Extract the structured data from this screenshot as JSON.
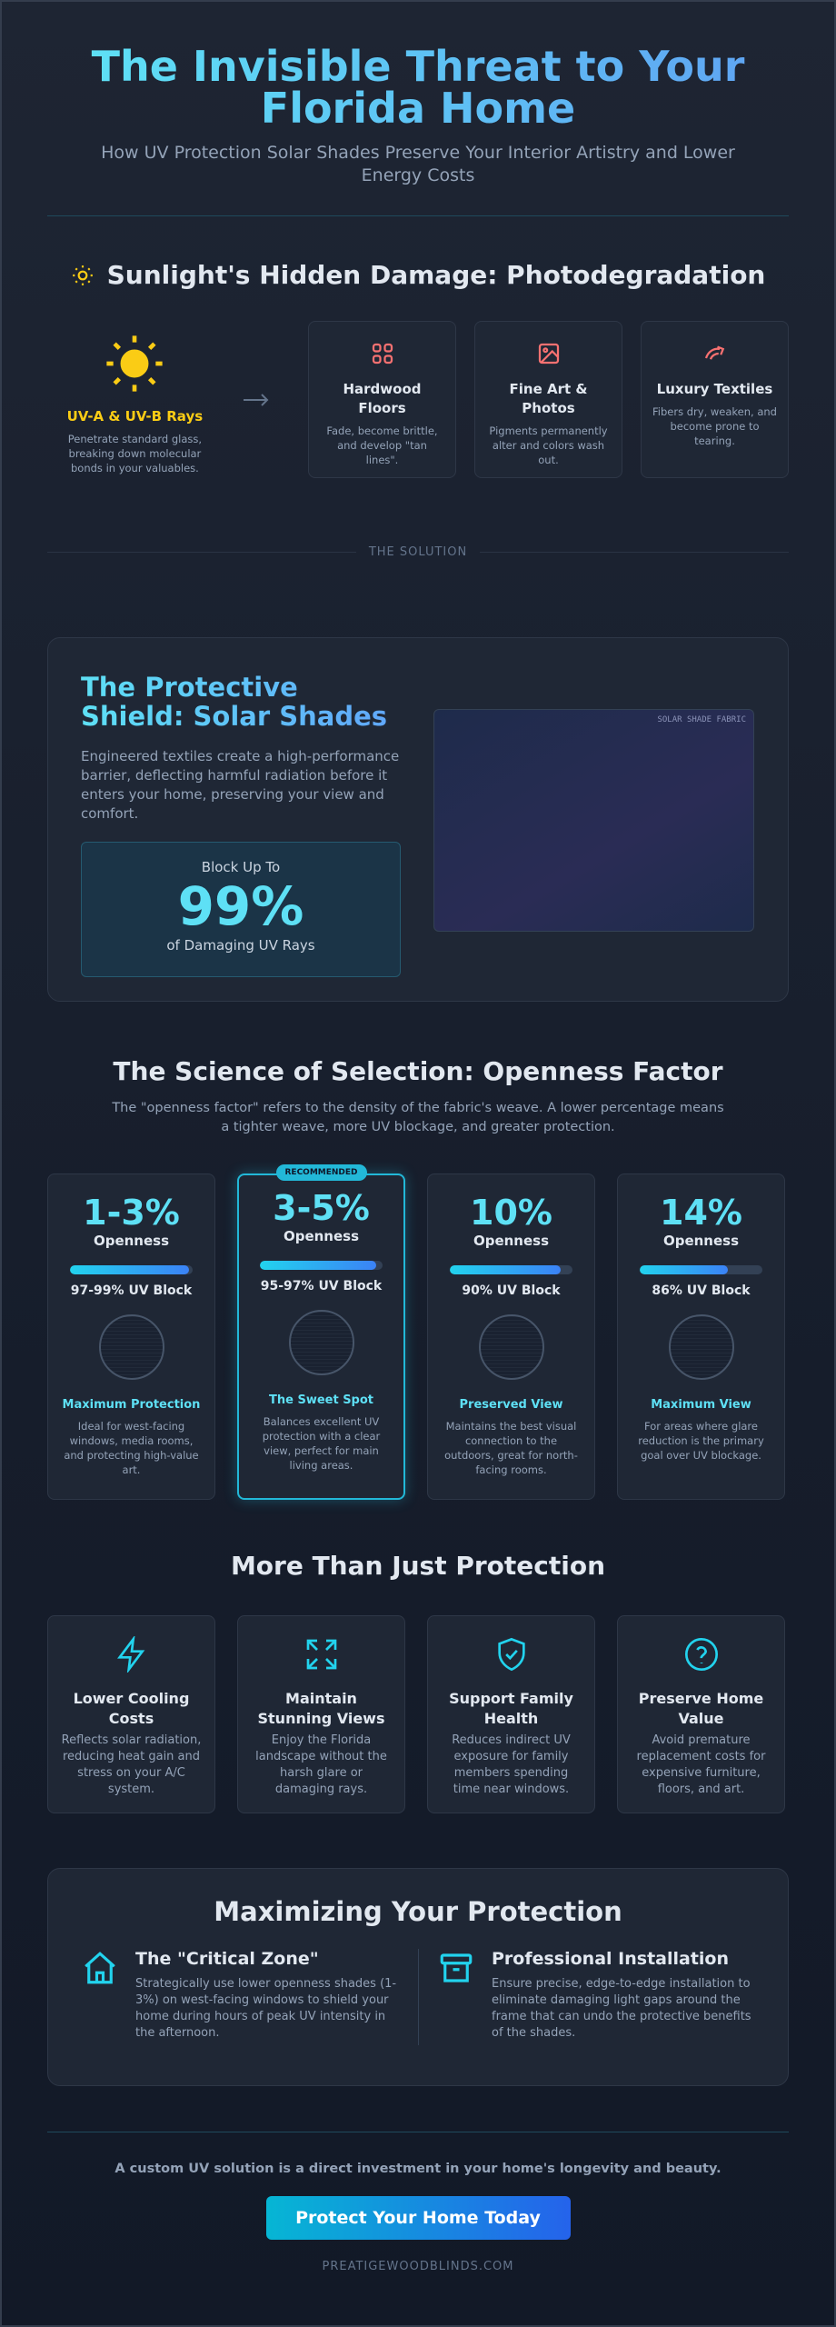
{
  "header": {
    "title": "The Invisible Threat to Your Florida Home",
    "subtitle": "How UV Protection Solar Shades Preserve Your Interior Artistry and Lower Energy Costs"
  },
  "damage": {
    "heading": "Sunlight's Hidden Damage: Photodegradation",
    "source": {
      "title": "UV-A & UV-B Rays",
      "text": "Penetrate standard glass, breaking down molecular bonds in your valuables."
    },
    "items": [
      {
        "title": "Hardwood Floors",
        "text": "Fade, become brittle, and develop \"tan lines\"."
      },
      {
        "title": "Fine Art & Photos",
        "text": "Pigments permanently alter and colors wash out."
      },
      {
        "title": "Luxury Textiles",
        "text": "Fibers dry, weaken, and become prone to tearing."
      }
    ]
  },
  "divider": "THE SOLUTION",
  "solution": {
    "heading": "The Protective Shield: Solar Shades",
    "text": "Engineered textiles create a high-performance barrier, deflecting harmful radiation before it enters your home, preserving your view and comfort.",
    "stat_pre": "Block Up To",
    "stat": "99%",
    "stat_post": "of Damaging UV Rays",
    "image_label": "SOLAR SHADE FABRIC"
  },
  "openness": {
    "heading": "The Science of Selection: Openness Factor",
    "text": "The \"openness factor\" refers to the density of the fabric's weave. A lower percentage means a tighter weave, more UV blockage, and greater protection.",
    "badge": "RECOMMENDED",
    "options": [
      {
        "range": "1-3%",
        "label": "Openness",
        "block": "97-99% UV Block",
        "title": "Maximum Protection",
        "text": "Ideal for west-facing windows, media rooms, and protecting high-value art."
      },
      {
        "range": "3-5%",
        "label": "Openness",
        "block": "95-97% UV Block",
        "title": "The Sweet Spot",
        "text": "Balances excellent UV protection with a clear view, perfect for main living areas."
      },
      {
        "range": "10%",
        "label": "Openness",
        "block": "90% UV Block",
        "title": "Preserved View",
        "text": "Maintains the best visual connection to the outdoors, great for north-facing rooms."
      },
      {
        "range": "14%",
        "label": "Openness",
        "block": "86% UV Block",
        "title": "Maximum View",
        "text": "For areas where glare reduction is the primary goal over UV blockage."
      }
    ]
  },
  "benefits": {
    "heading": "More Than Just Protection",
    "items": [
      {
        "title": "Lower Cooling Costs",
        "text": "Reflects solar radiation, reducing heat gain and stress on your A/C system."
      },
      {
        "title": "Maintain Stunning Views",
        "text": "Enjoy the Florida landscape without the harsh glare or damaging rays."
      },
      {
        "title": "Support Family Health",
        "text": "Reduces indirect UV exposure for family members spending time near windows."
      },
      {
        "title": "Preserve Home Value",
        "text": "Avoid premature replacement costs for expensive furniture, floors, and art."
      }
    ]
  },
  "tips": {
    "heading": "Maximizing Your Protection",
    "items": [
      {
        "title": "The \"Critical Zone\"",
        "text": "Strategically use lower openness shades (1-3%) on west-facing windows to shield your home during hours of peak UV intensity in the afternoon."
      },
      {
        "title": "Professional Installation",
        "text": "Ensure precise, edge-to-edge installation to eliminate damaging light gaps around the frame that can undo the protective benefits of the shades."
      }
    ]
  },
  "footer": {
    "text": "A custom UV solution is a direct investment in your home's longevity and beauty.",
    "button": "Protect Your Home Today",
    "site": "PREATIGEWOODBLINDS.COM"
  }
}
